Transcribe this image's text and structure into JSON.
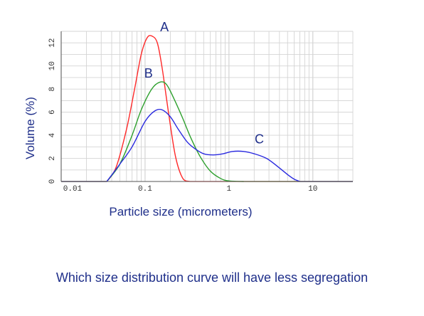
{
  "question": "Which size distribution curve will have less segregation",
  "chart_data": {
    "type": "line",
    "xlabel": "Particle size (micrometers)",
    "ylabel": "Volume (%)",
    "xscale": "log",
    "xlim": [
      0.01,
      30
    ],
    "ylim": [
      0,
      13
    ],
    "x_ticks": [
      0.01,
      0.1,
      1,
      10
    ],
    "x_tick_labels": [
      "0.01",
      "0.1",
      "1",
      "10"
    ],
    "y_ticks": [
      0,
      2,
      4,
      6,
      8,
      10,
      12
    ],
    "y_tick_labels": [
      "0",
      "2",
      "4",
      "6",
      "8",
      "10",
      "12"
    ],
    "grid": true,
    "series": [
      {
        "name": "A",
        "color": "#ff2a2a",
        "x": [
          0.035,
          0.045,
          0.06,
          0.075,
          0.09,
          0.105,
          0.12,
          0.14,
          0.16,
          0.19,
          0.23,
          0.28,
          0.34
        ],
        "y": [
          0,
          1.2,
          4.5,
          8.0,
          11.0,
          12.4,
          12.6,
          12.0,
          9.8,
          6.0,
          2.2,
          0.3,
          0
        ]
      },
      {
        "name": "B",
        "color": "#2ea02e",
        "x": [
          0.035,
          0.05,
          0.07,
          0.09,
          0.12,
          0.15,
          0.18,
          0.22,
          0.28,
          0.35,
          0.45,
          0.6,
          0.8,
          1.0,
          1.5
        ],
        "y": [
          0,
          1.5,
          4.0,
          6.2,
          8.0,
          8.6,
          8.4,
          7.2,
          5.5,
          3.8,
          2.2,
          0.9,
          0.25,
          0.05,
          0
        ]
      },
      {
        "name": "C",
        "color": "#2a2adf",
        "x": [
          0.035,
          0.05,
          0.07,
          0.1,
          0.13,
          0.16,
          0.2,
          0.25,
          0.32,
          0.4,
          0.5,
          0.65,
          0.85,
          1.1,
          1.5,
          2.0,
          2.8,
          3.8,
          5.0,
          6.0,
          7.0
        ],
        "y": [
          0,
          1.5,
          3.0,
          5.2,
          6.1,
          6.2,
          5.6,
          4.5,
          3.4,
          2.8,
          2.4,
          2.3,
          2.4,
          2.6,
          2.6,
          2.4,
          2.0,
          1.3,
          0.6,
          0.2,
          0
        ]
      }
    ]
  }
}
